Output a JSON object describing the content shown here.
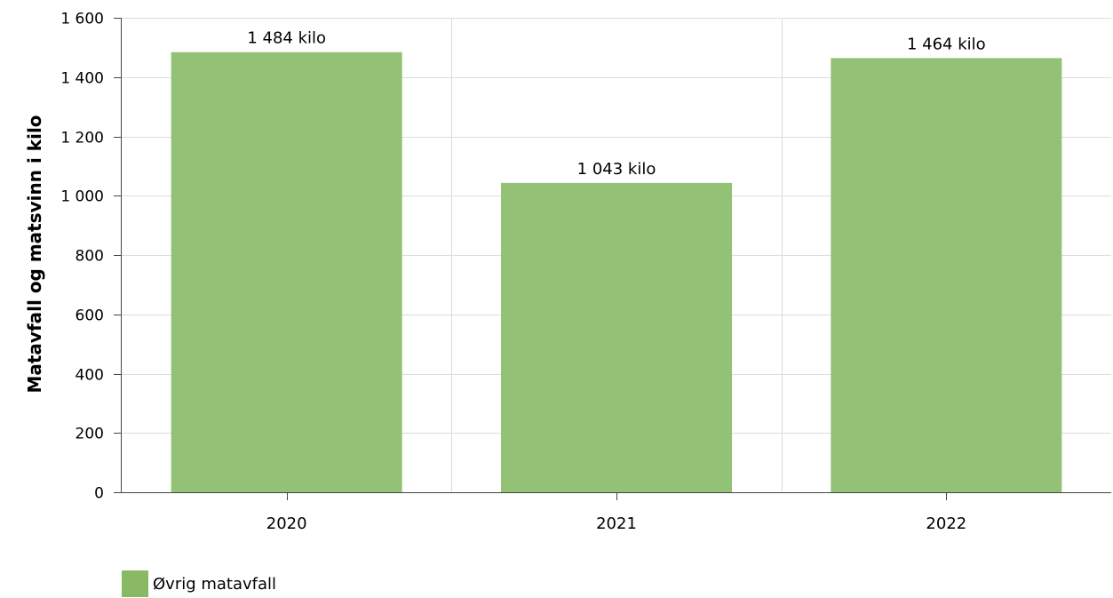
{
  "colors": {
    "bar": "#93c175",
    "legend_swatch": "#8ab965",
    "grid": "#dcdcdc",
    "axis": "#444444"
  },
  "chart_data": {
    "type": "bar",
    "categories": [
      "2020",
      "2021",
      "2022"
    ],
    "series": [
      {
        "name": "Øvrig matavfall",
        "values": [
          1484,
          1043,
          1464
        ],
        "value_labels": [
          "1 484 kilo",
          "1 043 kilo",
          "1 464 kilo"
        ]
      }
    ],
    "ylabel": "Matavfall og matsvinn i kilo",
    "xlabel": "",
    "ylim": [
      0,
      1600
    ],
    "yticks": [
      0,
      200,
      400,
      600,
      800,
      1000,
      1200,
      1400,
      1600
    ],
    "ytick_labels": [
      "0",
      "200",
      "400",
      "600",
      "800",
      "1 000",
      "1 200",
      "1 400",
      "1 600"
    ],
    "grid": true,
    "legend_position": "bottom-left"
  }
}
